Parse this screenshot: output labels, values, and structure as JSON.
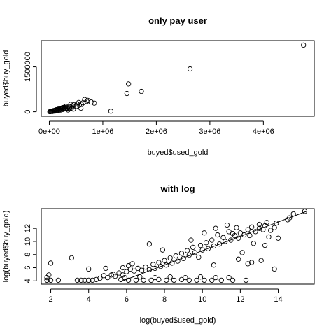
{
  "chart_data": [
    {
      "type": "scatter",
      "title": "only pay user",
      "xlabel": "buyed$used_gold",
      "ylabel": "buyed$buy_gold",
      "xlim": [
        -150000,
        4950000
      ],
      "ylim": [
        -150000,
        2380000
      ],
      "xticks": [
        0,
        1000000,
        2000000,
        3000000,
        4000000
      ],
      "xtick_labels": [
        "0e+00",
        "1e+06",
        "2e+06",
        "3e+06",
        "4e+06"
      ],
      "yticks": [
        0,
        1500000
      ],
      "ytick_labels": [
        "0",
        "1500000"
      ],
      "grid": false,
      "marker": "open-circle",
      "points": [
        [
          4750000,
          2230000
        ],
        [
          2630000,
          1430000
        ],
        [
          1480000,
          930000
        ],
        [
          1720000,
          680000
        ],
        [
          1450000,
          610000
        ],
        [
          1150000,
          20000
        ],
        [
          780000,
          330000
        ],
        [
          720000,
          380000
        ],
        [
          660000,
          410000
        ],
        [
          700000,
          350000
        ],
        [
          630000,
          300000
        ],
        [
          600000,
          250000
        ],
        [
          560000,
          220000
        ],
        [
          520000,
          260000
        ],
        [
          500000,
          180000
        ],
        [
          460000,
          230000
        ],
        [
          430000,
          200000
        ],
        [
          400000,
          250000
        ],
        [
          380000,
          170000
        ],
        [
          350000,
          150000
        ],
        [
          330000,
          120000
        ],
        [
          310000,
          180000
        ],
        [
          290000,
          130000
        ],
        [
          270000,
          100000
        ],
        [
          250000,
          140000
        ],
        [
          230000,
          90000
        ],
        [
          210000,
          110000
        ],
        [
          190000,
          70000
        ],
        [
          170000,
          90000
        ],
        [
          150000,
          60000
        ],
        [
          130000,
          70000
        ],
        [
          110000,
          50000
        ],
        [
          90000,
          40000
        ],
        [
          70000,
          30000
        ],
        [
          50000,
          20000
        ],
        [
          30000,
          10000
        ],
        [
          20000,
          5000
        ],
        [
          10000,
          2000
        ],
        [
          60000,
          10000
        ],
        [
          100000,
          20000
        ],
        [
          140000,
          30000
        ],
        [
          180000,
          40000
        ],
        [
          220000,
          60000
        ],
        [
          260000,
          80000
        ],
        [
          300000,
          100000
        ],
        [
          340000,
          110000
        ],
        [
          380000,
          120000
        ],
        [
          420000,
          130000
        ],
        [
          280000,
          150000
        ],
        [
          240000,
          120000
        ],
        [
          200000,
          100000
        ],
        [
          160000,
          80000
        ],
        [
          120000,
          60000
        ],
        [
          80000,
          40000
        ],
        [
          40000,
          20000
        ],
        [
          840000,
          290000
        ],
        [
          590000,
          120000
        ],
        [
          450000,
          90000
        ],
        [
          350000,
          60000
        ],
        [
          550000,
          310000
        ]
      ]
    },
    {
      "type": "scatter",
      "title": "with log",
      "xlabel": "log(buyed$used_gold)",
      "ylabel": "log(buyed$buy_gold)",
      "xlim": [
        1.5,
        15.9
      ],
      "ylim": [
        3.5,
        15.0
      ],
      "xticks": [
        2,
        4,
        6,
        8,
        10,
        12,
        14
      ],
      "xtick_labels": [
        "2",
        "4",
        "6",
        "8",
        "10",
        "12",
        "14"
      ],
      "yticks": [
        4,
        6,
        8,
        10,
        12
      ],
      "ytick_labels": [
        "4",
        "6",
        "8",
        "10",
        "12"
      ],
      "grid": false,
      "marker": "open-circle",
      "reference_line": {
        "x": [
          5.7,
          15.5
        ],
        "y": [
          3.9,
          14.6
        ]
      },
      "points": [
        [
          15.4,
          14.6
        ],
        [
          14.8,
          14.2
        ],
        [
          14.6,
          13.6
        ],
        [
          14.5,
          13.3
        ],
        [
          13.9,
          12.8
        ],
        [
          13.8,
          12.1
        ],
        [
          13.6,
          11.7
        ],
        [
          13.4,
          12.9
        ],
        [
          13.3,
          12.4
        ],
        [
          13.2,
          11.8
        ],
        [
          13.0,
          12.6
        ],
        [
          13.0,
          12.0
        ],
        [
          12.8,
          11.5
        ],
        [
          12.6,
          12.2
        ],
        [
          12.5,
          10.9
        ],
        [
          12.4,
          11.8
        ],
        [
          12.2,
          11.0
        ],
        [
          12.0,
          11.3
        ],
        [
          11.9,
          10.5
        ],
        [
          11.8,
          12.1
        ],
        [
          11.7,
          10.9
        ],
        [
          11.5,
          10.2
        ],
        [
          11.4,
          11.5
        ],
        [
          11.2,
          10.0
        ],
        [
          11.1,
          10.6
        ],
        [
          10.9,
          9.6
        ],
        [
          10.8,
          11.0
        ],
        [
          10.6,
          9.3
        ],
        [
          10.5,
          10.2
        ],
        [
          10.3,
          8.9
        ],
        [
          10.2,
          9.8
        ],
        [
          10.0,
          8.7
        ],
        [
          9.9,
          9.4
        ],
        [
          9.8,
          7.6
        ],
        [
          9.6,
          8.3
        ],
        [
          9.5,
          9.1
        ],
        [
          9.3,
          7.9
        ],
        [
          9.2,
          8.6
        ],
        [
          9.0,
          7.4
        ],
        [
          8.9,
          8.2
        ],
        [
          8.7,
          7.0
        ],
        [
          8.6,
          7.8
        ],
        [
          8.4,
          6.7
        ],
        [
          8.3,
          7.5
        ],
        [
          8.1,
          6.4
        ],
        [
          8.0,
          7.1
        ],
        [
          7.8,
          6.2
        ],
        [
          7.7,
          6.8
        ],
        [
          7.5,
          5.9
        ],
        [
          7.4,
          6.5
        ],
        [
          7.2,
          5.7
        ],
        [
          7.0,
          6.1
        ],
        [
          6.8,
          5.6
        ],
        [
          6.6,
          5.9
        ],
        [
          6.4,
          5.5
        ],
        [
          6.2,
          5.8
        ],
        [
          6.0,
          5.4
        ],
        [
          5.8,
          4.9
        ],
        [
          5.6,
          5.2
        ],
        [
          5.4,
          4.7
        ],
        [
          5.2,
          4.9
        ],
        [
          5.0,
          4.5
        ],
        [
          4.8,
          4.8
        ],
        [
          4.6,
          4.4
        ],
        [
          4.4,
          4.2
        ],
        [
          4.2,
          4.1
        ],
        [
          4.0,
          4.1
        ],
        [
          3.8,
          4.1
        ],
        [
          3.6,
          4.1
        ],
        [
          3.4,
          4.1
        ],
        [
          3.1,
          7.5
        ],
        [
          2.0,
          6.7
        ],
        [
          4.0,
          5.8
        ],
        [
          4.9,
          5.9
        ],
        [
          5.3,
          5.0
        ],
        [
          2.4,
          4.1
        ],
        [
          2.0,
          4.1
        ],
        [
          1.8,
          4.1
        ],
        [
          1.8,
          4.5
        ],
        [
          1.9,
          4.9
        ],
        [
          5.7,
          4.2
        ],
        [
          6.1,
          4.1
        ],
        [
          6.5,
          4.1
        ],
        [
          6.9,
          4.1
        ],
        [
          7.3,
          4.1
        ],
        [
          7.7,
          4.2
        ],
        [
          8.1,
          4.1
        ],
        [
          8.5,
          4.1
        ],
        [
          8.9,
          4.2
        ],
        [
          9.3,
          4.1
        ],
        [
          9.7,
          4.1
        ],
        [
          10.1,
          4.1
        ],
        [
          10.5,
          4.1
        ],
        [
          11.0,
          4.1
        ],
        [
          11.6,
          4.1
        ],
        [
          12.3,
          4.1
        ],
        [
          11.4,
          4.5
        ],
        [
          10.7,
          4.5
        ],
        [
          9.9,
          4.6
        ],
        [
          9.1,
          4.5
        ],
        [
          8.3,
          4.6
        ],
        [
          7.5,
          4.5
        ],
        [
          6.7,
          4.6
        ],
        [
          5.9,
          4.5
        ],
        [
          12.6,
          6.8
        ],
        [
          13.1,
          7.1
        ],
        [
          13.8,
          5.8
        ],
        [
          12.4,
          6.6
        ],
        [
          11.9,
          7.3
        ],
        [
          10.6,
          6.4
        ],
        [
          7.9,
          8.7
        ],
        [
          7.2,
          9.6
        ],
        [
          6.1,
          6.3
        ],
        [
          5.8,
          6.0
        ],
        [
          6.3,
          6.6
        ],
        [
          9.4,
          10.2
        ],
        [
          10.1,
          11.3
        ],
        [
          10.7,
          12.0
        ],
        [
          11.3,
          12.5
        ],
        [
          11.6,
          11.2
        ],
        [
          12.1,
          8.3
        ],
        [
          12.7,
          9.7
        ],
        [
          13.3,
          9.4
        ],
        [
          13.5,
          10.7
        ],
        [
          14.0,
          10.5
        ]
      ]
    }
  ]
}
